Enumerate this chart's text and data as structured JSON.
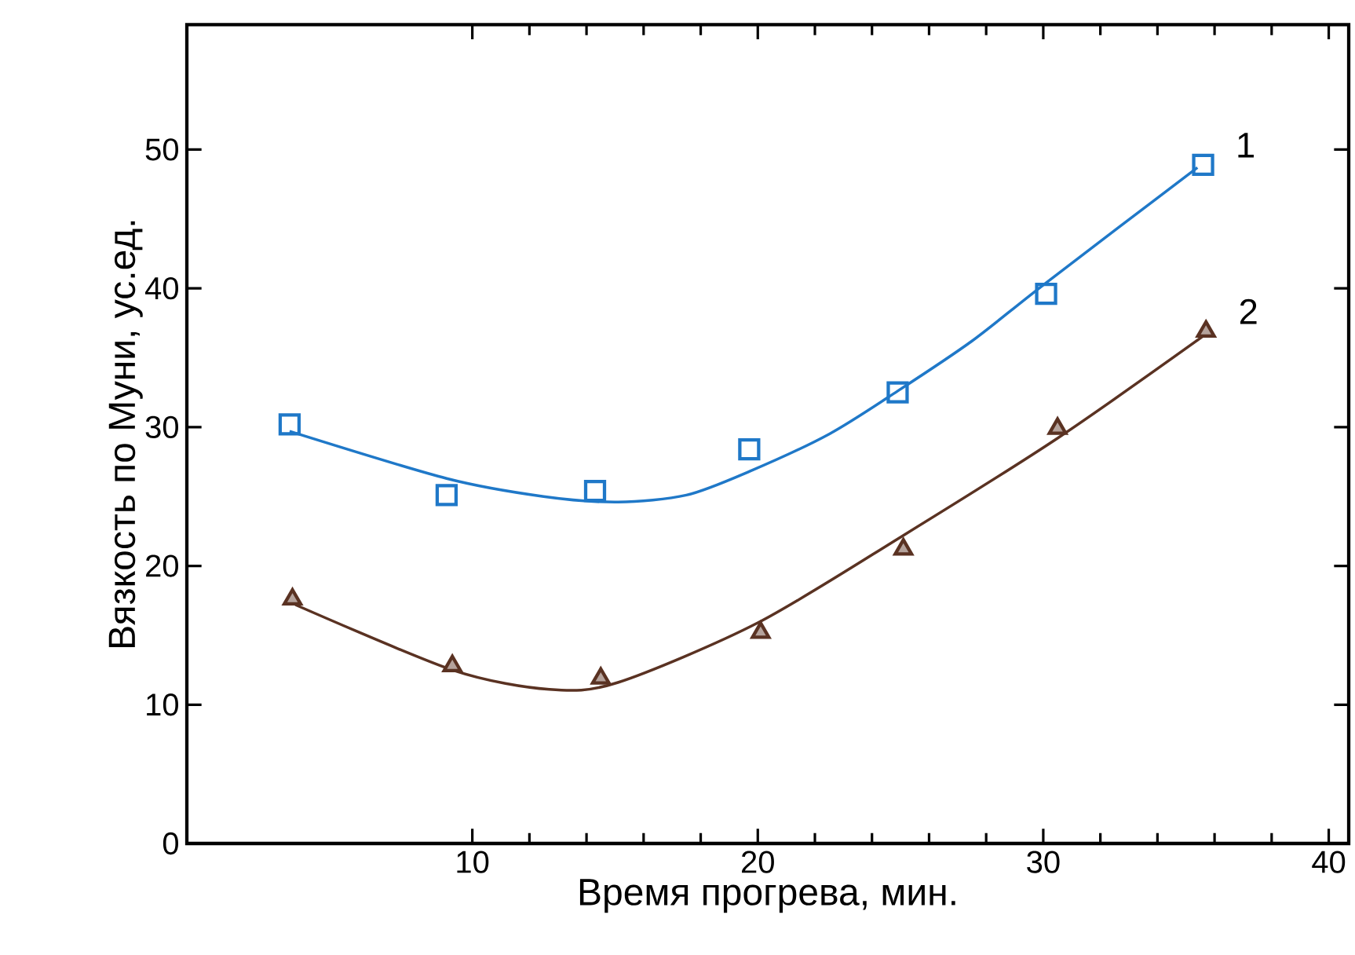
{
  "chart_data": {
    "type": "scatter",
    "xlabel": "Время прогрева, мин.",
    "ylabel": "Вязкость по Муни, ус.ед.",
    "xlim": [
      0,
      40.7
    ],
    "ylim": [
      0,
      59
    ],
    "xticks": [
      10,
      20,
      30,
      40
    ],
    "yticks": [
      0,
      10,
      20,
      30,
      40,
      50
    ],
    "grid": false,
    "series": [
      {
        "name": "1",
        "marker": "square",
        "color": "#1f78c8",
        "x": [
          3.6,
          9.1,
          14.3,
          19.7,
          24.9,
          30.1,
          35.6
        ],
        "values": [
          30.2,
          25.1,
          25.4,
          28.4,
          32.5,
          39.6,
          48.9
        ]
      },
      {
        "name": "2",
        "marker": "triangle",
        "color": "#5a3222",
        "x": [
          3.7,
          9.3,
          14.5,
          20.1,
          25.1,
          30.5,
          35.7
        ],
        "values": [
          17.6,
          12.8,
          11.9,
          15.2,
          21.2,
          29.9,
          36.9
        ]
      },
      {
        "type": "line",
        "marker": "none",
        "line_style": "solid",
        "color": "#1f78c8",
        "x": [
          3.6,
          9.1,
          12.5,
          15.1,
          17.5,
          19.7,
          22.5,
          24.9,
          27.5,
          30.1,
          35.4
        ],
        "values": [
          29.7,
          26.3,
          25.0,
          24.6,
          25.1,
          26.8,
          29.5,
          32.6,
          36.2,
          40.4,
          48.7
        ]
      },
      {
        "type": "line",
        "marker": "none",
        "line_style": "solid",
        "color": "#5a3222",
        "x": [
          3.8,
          9.3,
          12.7,
          15.1,
          20.0,
          25.1,
          30.5,
          35.7
        ],
        "values": [
          17.2,
          12.5,
          11.1,
          11.6,
          15.9,
          22.2,
          29.2,
          36.7
        ]
      }
    ]
  }
}
